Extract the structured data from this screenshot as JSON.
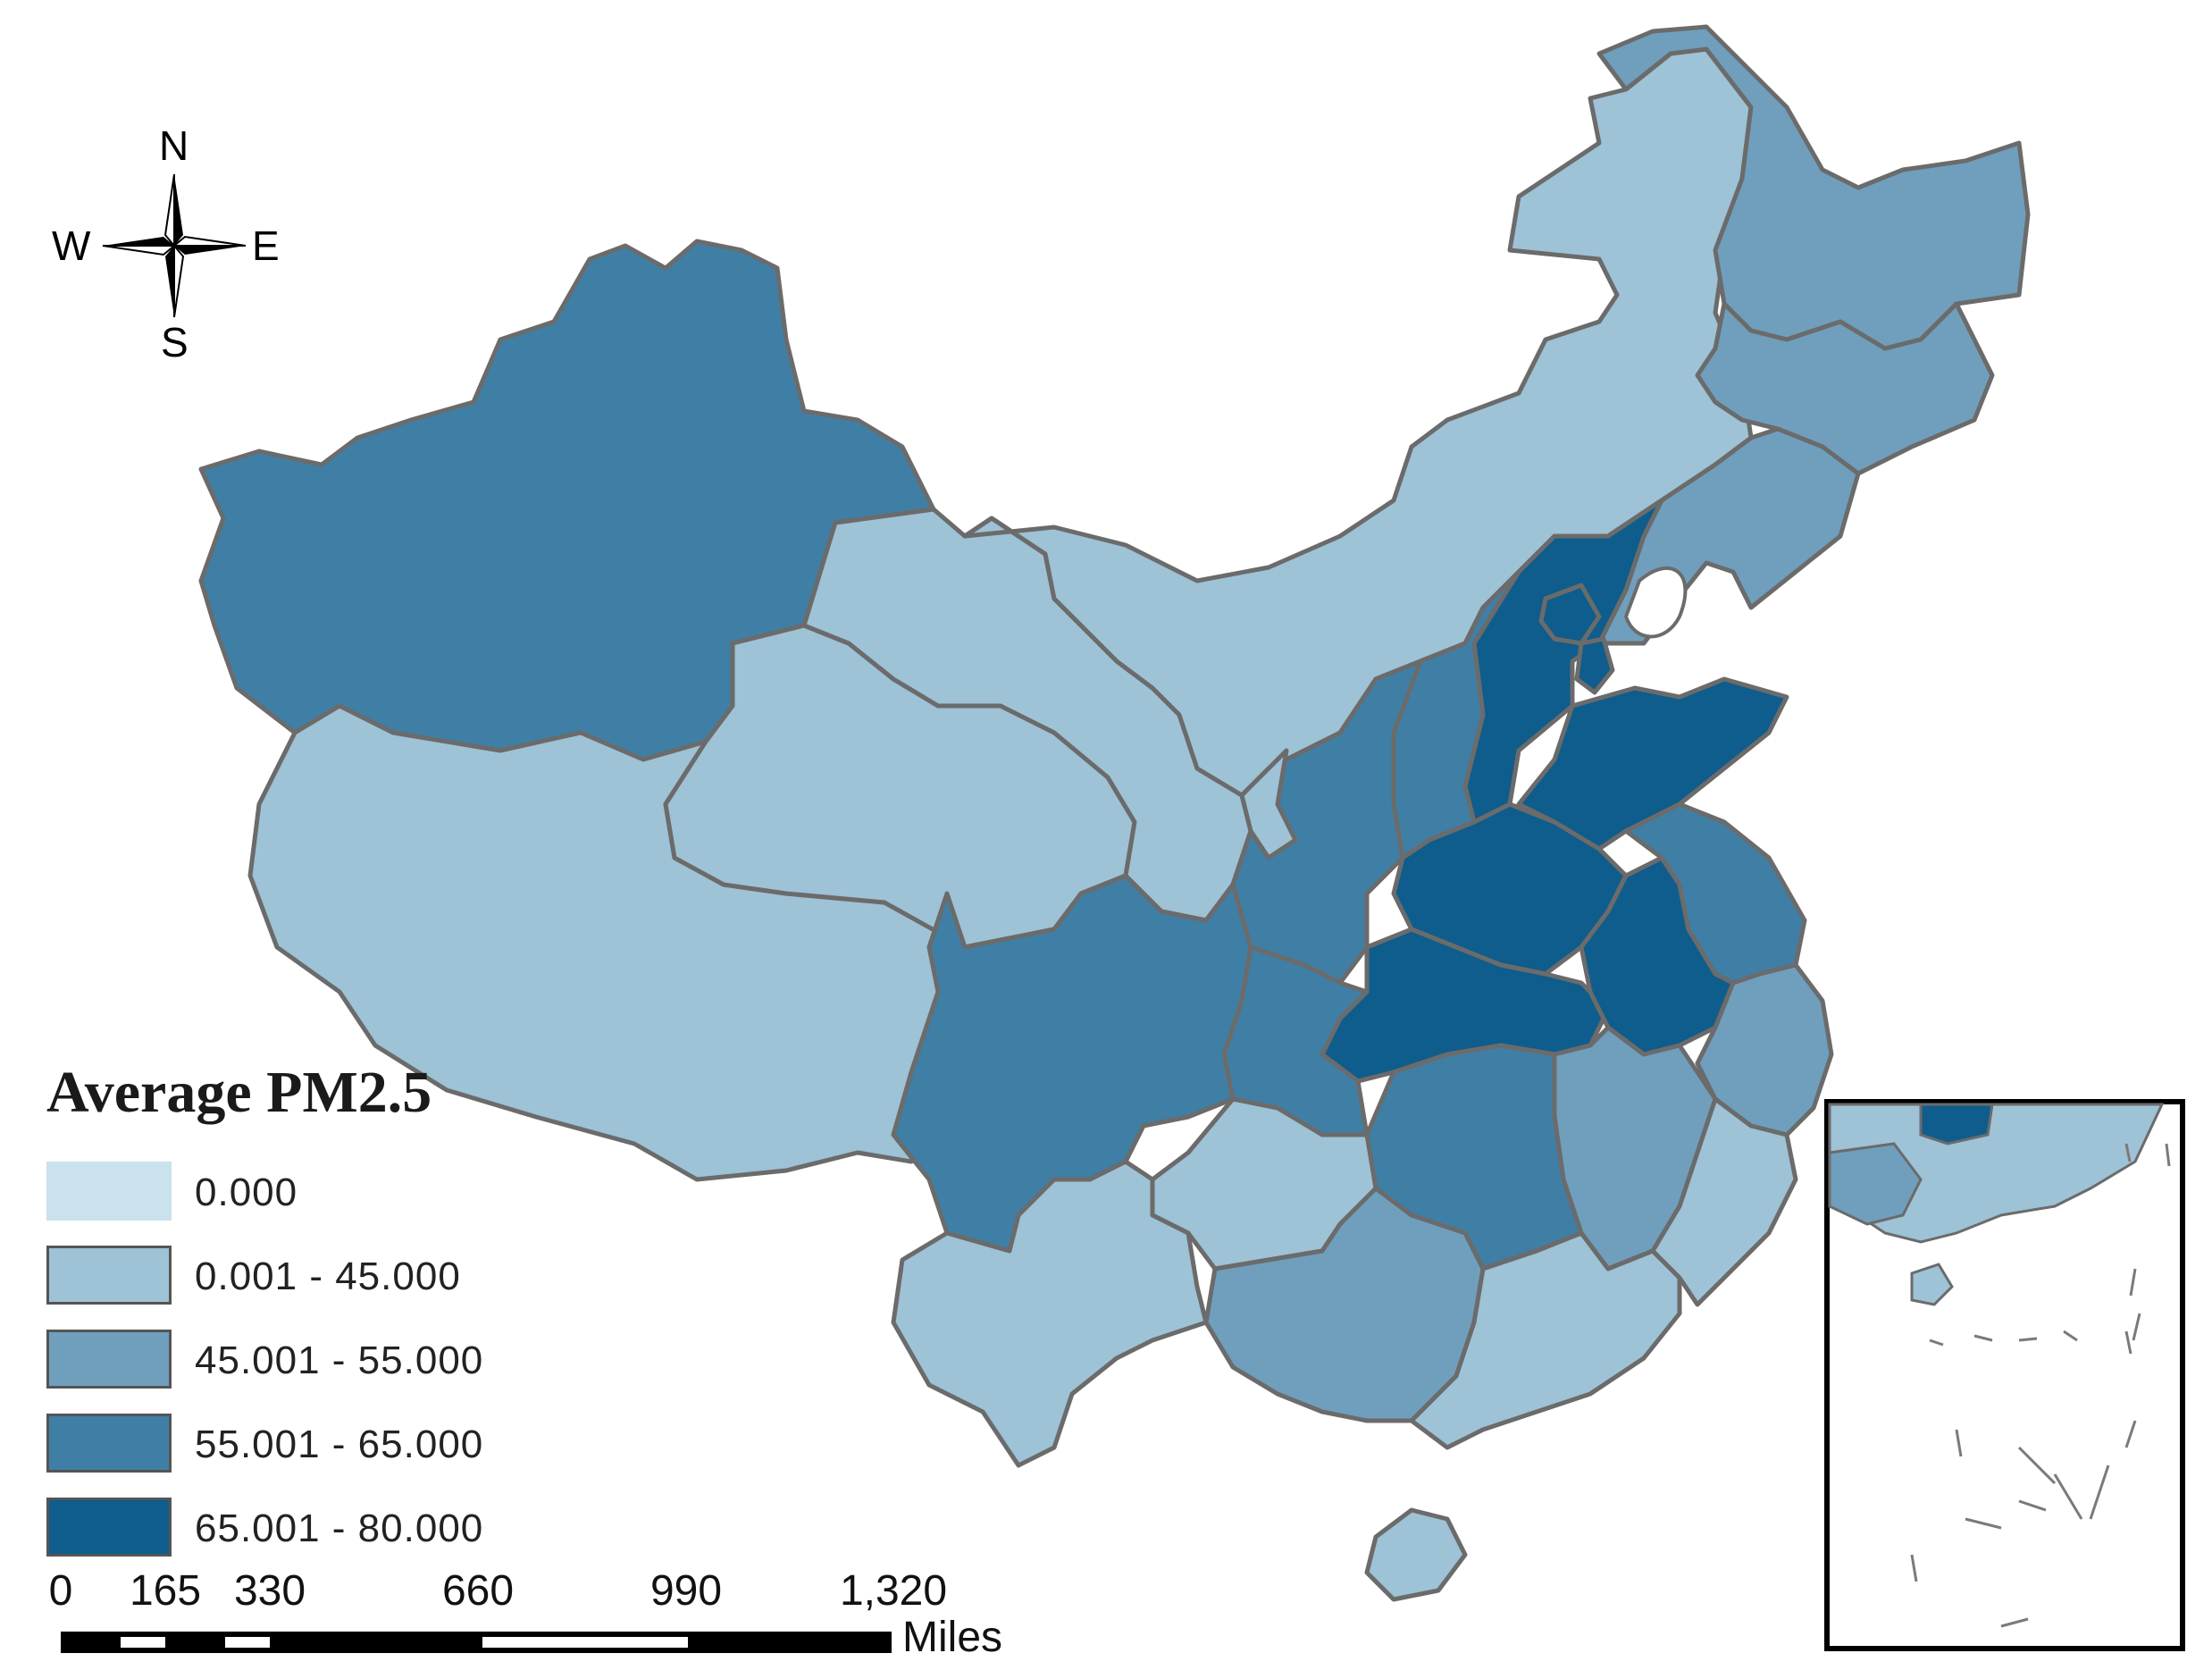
{
  "map": {
    "title": "Average PM2.5",
    "classes": [
      {
        "label": "0.000",
        "color": "#c9e2ec"
      },
      {
        "label": "0.001 - 45.000",
        "color": "#9ec2d6"
      },
      {
        "label": "45.001 - 55.000",
        "color": "#6f9fbd"
      },
      {
        "label": "55.001 - 65.000",
        "color": "#3f7fa5"
      },
      {
        "label": "65.001 - 80.000",
        "color": "#0e5d8c"
      }
    ],
    "compass": {
      "north": "N",
      "south": "S",
      "east": "E",
      "west": "W"
    },
    "scale_bar": {
      "ticks": [
        "0",
        "165",
        "330",
        "660",
        "990",
        "1,320"
      ],
      "unit": "Miles"
    },
    "regions": [
      {
        "name": "xinjiang",
        "class": 3
      },
      {
        "name": "tibet",
        "class": 1
      },
      {
        "name": "qinghai",
        "class": 1
      },
      {
        "name": "gansu",
        "class": 1
      },
      {
        "name": "inner-mongolia",
        "class": 1
      },
      {
        "name": "heilongjiang",
        "class": 2
      },
      {
        "name": "jilin",
        "class": 2
      },
      {
        "name": "liaoning",
        "class": 2
      },
      {
        "name": "hebei",
        "class": 4
      },
      {
        "name": "beijing",
        "class": 4
      },
      {
        "name": "tianjin",
        "class": 4
      },
      {
        "name": "shandong",
        "class": 4
      },
      {
        "name": "henan",
        "class": 4
      },
      {
        "name": "hubei",
        "class": 4
      },
      {
        "name": "anhui",
        "class": 4
      },
      {
        "name": "shanxi",
        "class": 3
      },
      {
        "name": "shaanxi",
        "class": 3
      },
      {
        "name": "ningxia",
        "class": 1
      },
      {
        "name": "sichuan",
        "class": 3
      },
      {
        "name": "chongqing",
        "class": 3
      },
      {
        "name": "hunan",
        "class": 3
      },
      {
        "name": "jiangsu",
        "class": 3
      },
      {
        "name": "zhejiang",
        "class": 2
      },
      {
        "name": "jiangxi",
        "class": 2
      },
      {
        "name": "guangxi",
        "class": 2
      },
      {
        "name": "yunnan",
        "class": 1
      },
      {
        "name": "guizhou",
        "class": 1
      },
      {
        "name": "guangdong",
        "class": 1
      },
      {
        "name": "fujian",
        "class": 1
      },
      {
        "name": "hainan",
        "class": 1
      },
      {
        "name": "taiwan",
        "class": 0
      }
    ]
  }
}
